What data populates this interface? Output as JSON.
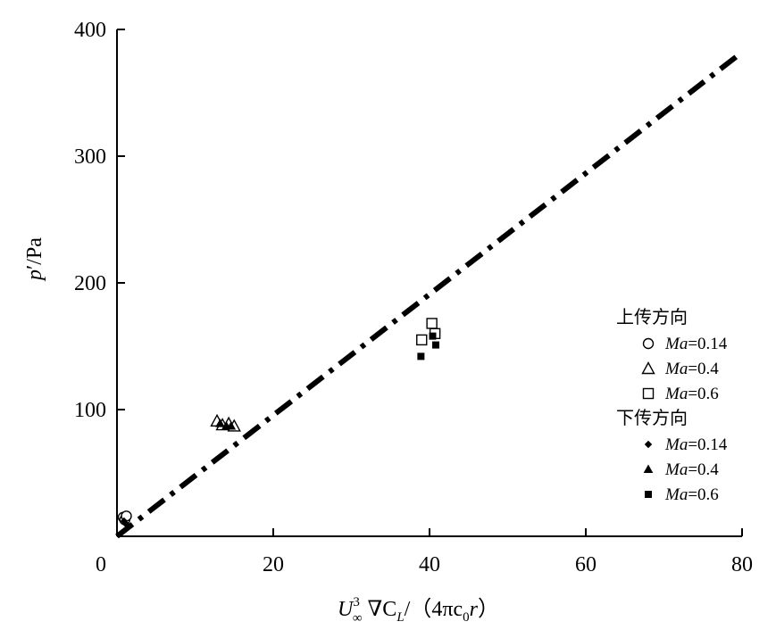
{
  "chart_data": {
    "type": "scatter",
    "title": "",
    "xlabel": {
      "U": "U",
      "sup": "3",
      "sub_inf": "∞",
      "mid": " ∇C",
      "sub_L": "L",
      "rest": "/（4πc",
      "sub_0": "0",
      "r": "r",
      "close": "）"
    },
    "ylabel": {
      "p": "p",
      "rest": "′/Pa"
    },
    "xlim": [
      0,
      80
    ],
    "ylim": [
      0,
      400
    ],
    "x_ticks": [
      0,
      20,
      40,
      60,
      80
    ],
    "y_ticks": [
      100,
      200,
      300,
      400
    ],
    "grid": false,
    "legend_position": "right",
    "fit_line": {
      "style": "dash-dot",
      "points": [
        [
          0,
          0
        ],
        [
          80,
          382
        ]
      ]
    },
    "legend_groups": [
      {
        "title": "上传方向",
        "series_indices": [
          0,
          1,
          2
        ]
      },
      {
        "title": "下传方向",
        "series_indices": [
          3,
          4,
          5
        ]
      }
    ],
    "series": [
      {
        "name": "Ma=0.14",
        "label_italic": "Ma",
        "label_value": "=0.14",
        "marker": "circle-open",
        "points": [
          [
            0.8,
            15
          ],
          [
            1.0,
            13
          ],
          [
            1.2,
            16
          ]
        ]
      },
      {
        "name": "Ma=0.4",
        "label_italic": "Ma",
        "label_value": "=0.4",
        "marker": "triangle-open",
        "points": [
          [
            12.8,
            91
          ],
          [
            13.5,
            88
          ],
          [
            14.3,
            89
          ],
          [
            15.0,
            87
          ]
        ]
      },
      {
        "name": "Ma=0.6",
        "label_italic": "Ma",
        "label_value": "=0.6",
        "marker": "square-open",
        "points": [
          [
            39.0,
            155
          ],
          [
            40.3,
            168
          ],
          [
            40.7,
            160
          ]
        ]
      },
      {
        "name": "Ma=0.14",
        "label_italic": "Ma",
        "label_value": "=0.14",
        "marker": "diamond-filled",
        "points": [
          [
            0.9,
            12
          ],
          [
            1.1,
            10
          ]
        ]
      },
      {
        "name": "Ma=0.4",
        "label_italic": "Ma",
        "label_value": "=0.4",
        "marker": "triangle-filled",
        "points": [
          [
            13.2,
            89
          ],
          [
            14.0,
            87
          ],
          [
            14.6,
            87
          ]
        ]
      },
      {
        "name": "Ma=0.6",
        "label_italic": "Ma",
        "label_value": "=0.6",
        "marker": "square-filled",
        "points": [
          [
            38.9,
            142
          ],
          [
            40.4,
            158
          ],
          [
            40.8,
            151
          ]
        ]
      }
    ]
  }
}
